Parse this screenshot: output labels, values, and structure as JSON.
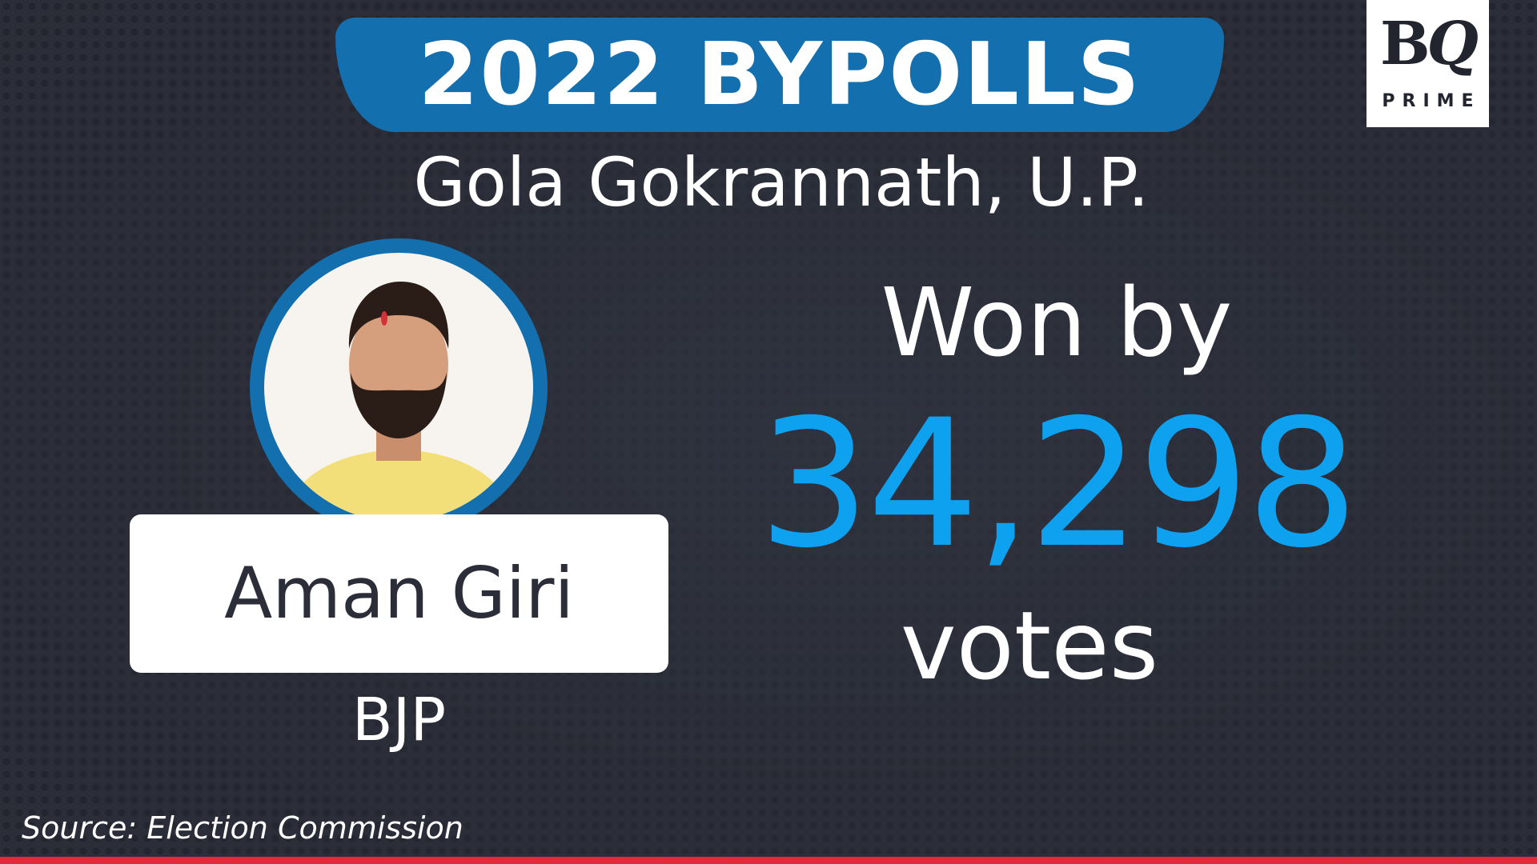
{
  "banner": {
    "title": "2022 BYPOLLS"
  },
  "constituency": "Gola Gokrannath, U.P.",
  "logo": {
    "text": "BQ PRIME",
    "line1": "BQ",
    "line2": "PRIME"
  },
  "candidate": {
    "name": "Aman Giri",
    "party": "BJP"
  },
  "result": {
    "won_by": "Won by",
    "margin": "34,298",
    "unit": "votes"
  },
  "source": "Source: Election Commission",
  "colors": {
    "banner": "#136fae",
    "margin": "#0ea1f0",
    "accent_line": "#e8273c",
    "background": "#2b2e38"
  }
}
